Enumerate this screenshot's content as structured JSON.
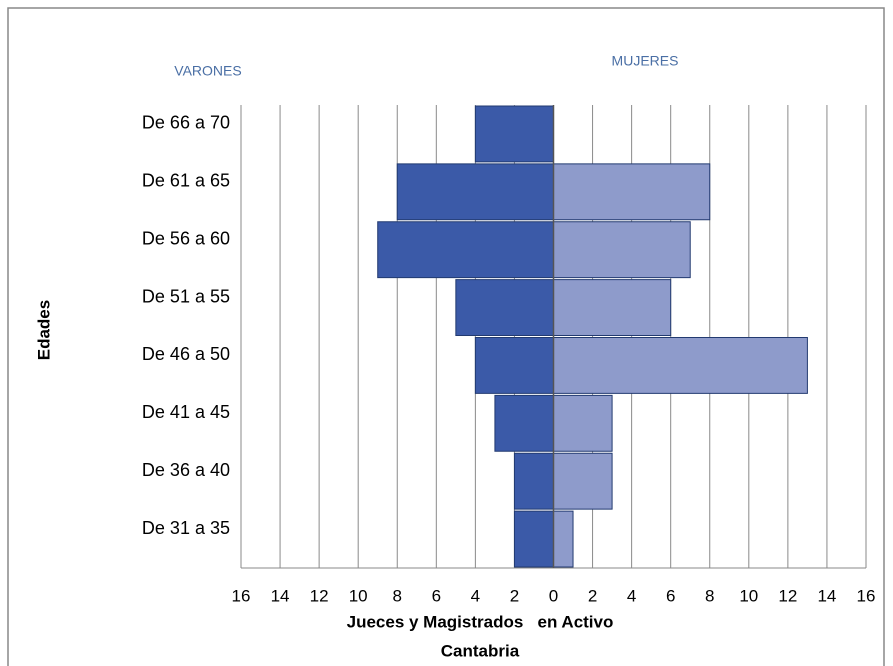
{
  "chart_data": {
    "type": "pyramid",
    "title": "Jueces y Magistrados   en Activo",
    "subtitle": "Cantabria",
    "y_axis_label": "Edades",
    "categories": [
      "De 66 a 70",
      "De 61 a 65",
      "De 56 a 60",
      "De 51 a 55",
      "De 46 a 50",
      "De 41 a 45",
      "De 36 a 40",
      "De 31 a 35"
    ],
    "series": [
      {
        "name": "VARONES",
        "color": "#3b5aa8",
        "values": [
          -4,
          -8,
          -9,
          -5,
          -4,
          -3,
          -2,
          -2
        ]
      },
      {
        "name": "MUJERES",
        "color": "#8e9bcb",
        "values": [
          0,
          8,
          7,
          6,
          13,
          3,
          3,
          1
        ]
      }
    ],
    "xlim": [
      -16,
      16
    ],
    "xticks": [
      {
        "value": -16,
        "label": "16"
      },
      {
        "value": -14,
        "label": "14"
      },
      {
        "value": -12,
        "label": "12"
      },
      {
        "value": -10,
        "label": "10"
      },
      {
        "value": -8,
        "label": "8"
      },
      {
        "value": -6,
        "label": "6"
      },
      {
        "value": -4,
        "label": "4"
      },
      {
        "value": -2,
        "label": "2"
      },
      0,
      2,
      4,
      6,
      8,
      10,
      12,
      14,
      16
    ],
    "grid": true
  }
}
